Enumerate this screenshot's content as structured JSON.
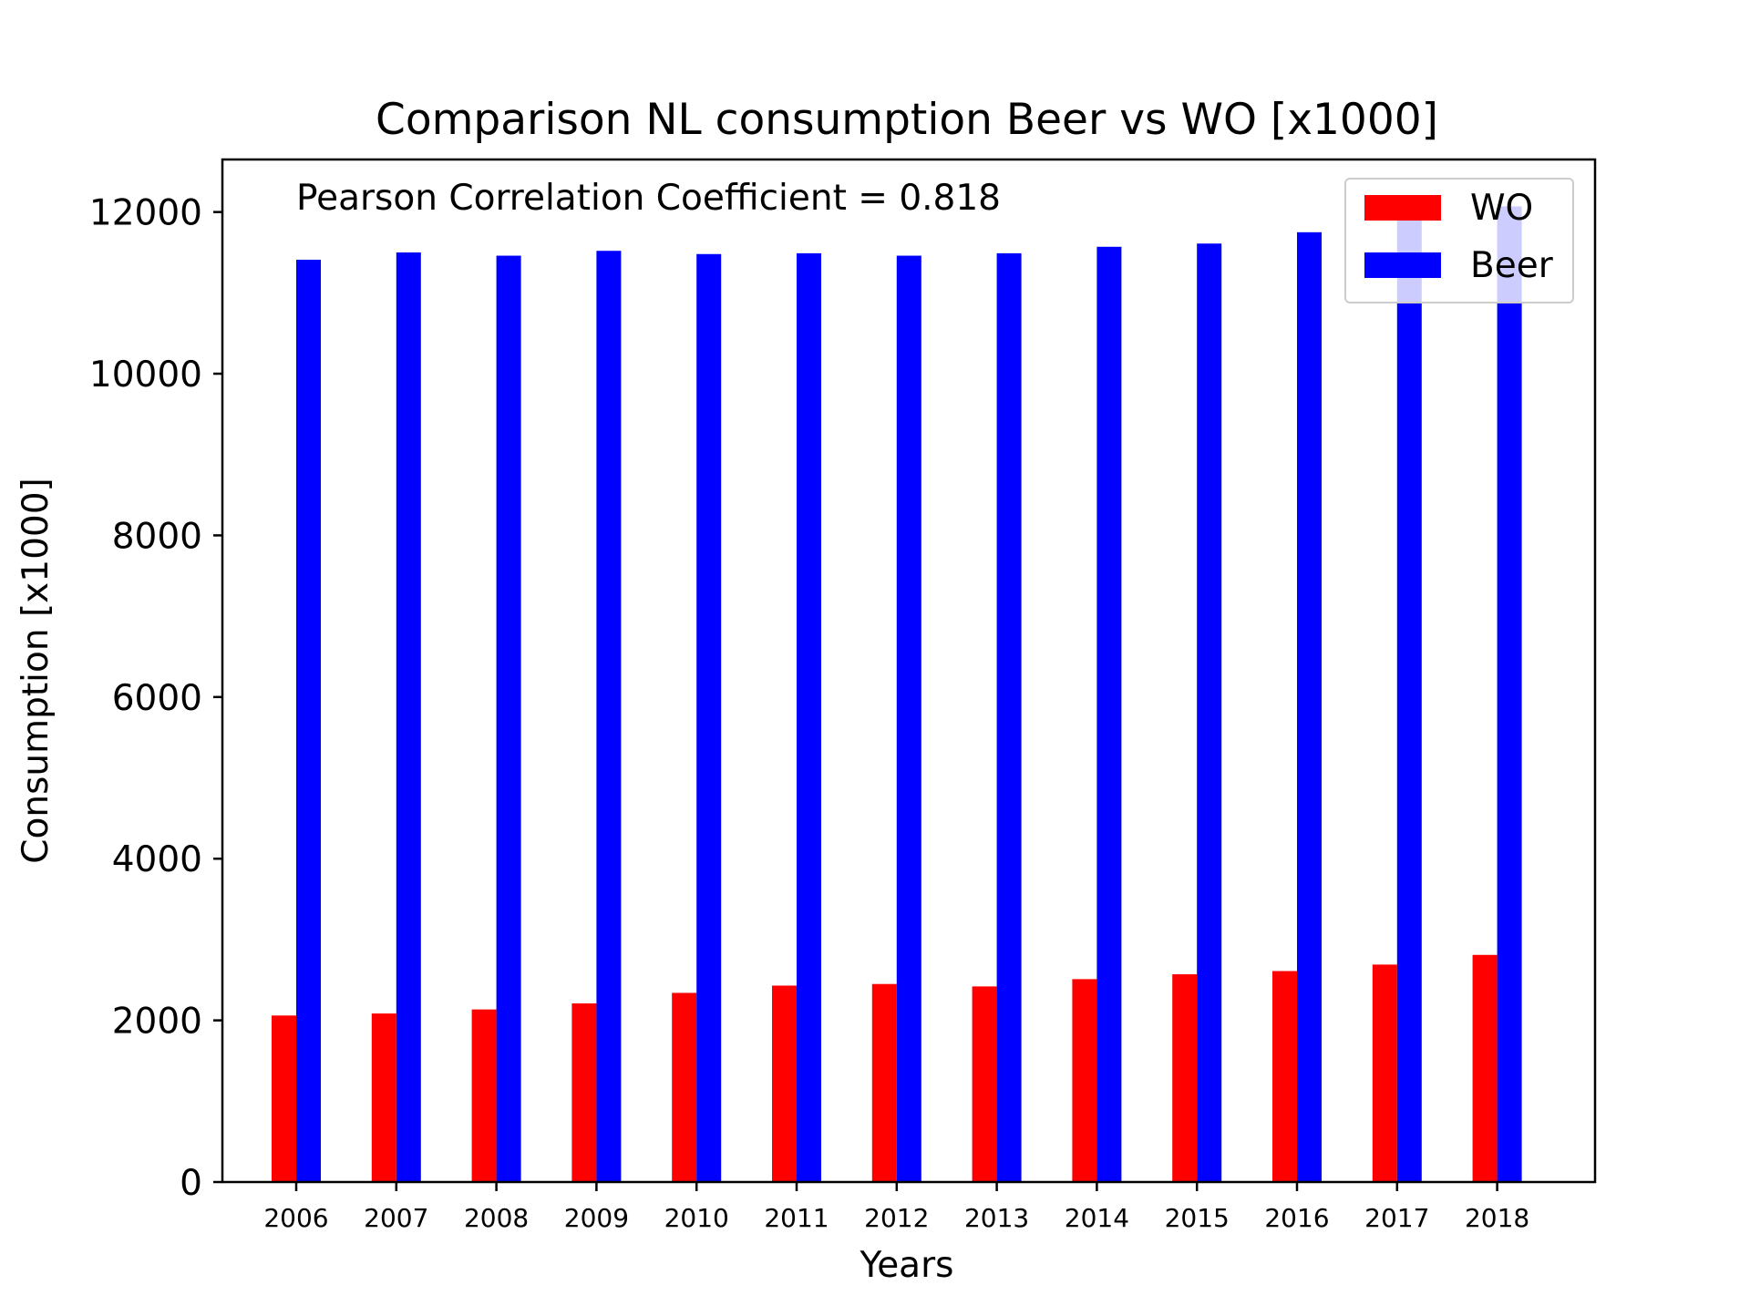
{
  "chart_data": {
    "type": "bar",
    "title": "Comparison NL consumption Beer vs WO [x1000]",
    "xlabel": "Years",
    "ylabel": "Consumption [x1000]",
    "annotation": "Pearson Correlation Coefficient = 0.818",
    "categories": [
      "2006",
      "2007",
      "2008",
      "2009",
      "2010",
      "2011",
      "2012",
      "2013",
      "2014",
      "2015",
      "2016",
      "2017",
      "2018"
    ],
    "series": [
      {
        "name": "WO",
        "color": "#ff0000",
        "values": [
          2060,
          2085,
          2135,
          2210,
          2340,
          2430,
          2450,
          2420,
          2510,
          2570,
          2610,
          2690,
          2810
        ]
      },
      {
        "name": "Beer",
        "color": "#0000ff",
        "values": [
          11410,
          11500,
          11460,
          11520,
          11480,
          11490,
          11460,
          11490,
          11570,
          11610,
          11750,
          11930,
          12070
        ]
      }
    ],
    "ylim": [
      0,
      12650
    ],
    "yticks": [
      0,
      2000,
      4000,
      6000,
      8000,
      10000,
      12000
    ],
    "legend": "top-right",
    "grid": false
  }
}
